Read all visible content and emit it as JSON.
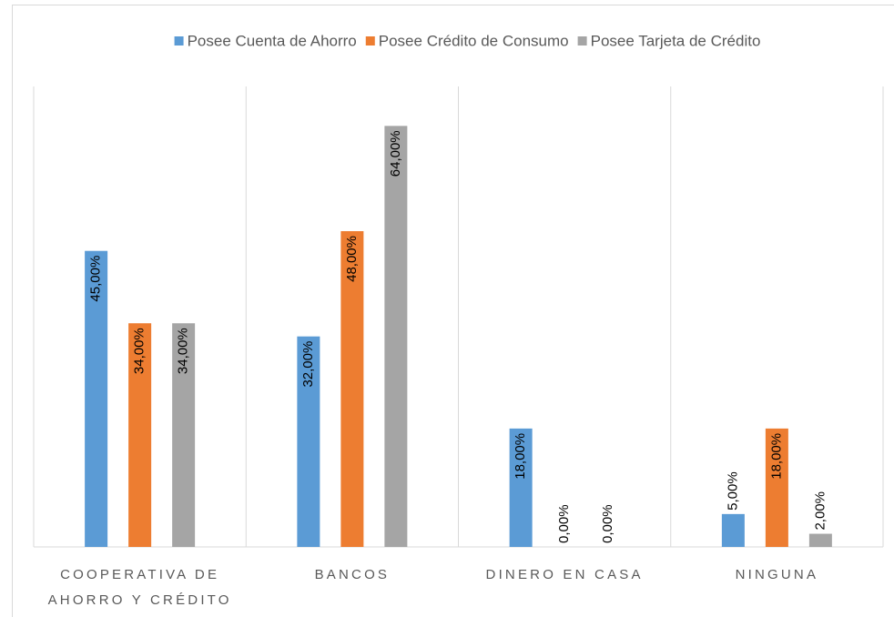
{
  "chart_data": {
    "type": "bar",
    "categories": [
      "COOPERATIVA DE AHORRO Y CRÉDITO",
      "BANCOS",
      "DINERO EN CASA",
      "NINGUNA"
    ],
    "series": [
      {
        "name": "Posee Cuenta de Ahorro",
        "color": "#5b9bd5",
        "values": [
          45,
          32,
          18,
          5
        ],
        "value_labels": [
          "45,00%",
          "32,00%",
          "18,00%",
          "5,00%"
        ]
      },
      {
        "name": "Posee Crédito de Consumo",
        "color": "#ed7d31",
        "values": [
          34,
          48,
          0,
          18
        ],
        "value_labels": [
          "34,00%",
          "48,00%",
          "0,00%",
          "18,00%"
        ]
      },
      {
        "name": "Posee Tarjeta de Crédito",
        "color": "#a5a5a5",
        "values": [
          34,
          64,
          0,
          2
        ],
        "value_labels": [
          "34,00%",
          "64,00%",
          "0,00%",
          "2,00%"
        ]
      }
    ],
    "ylim": [
      0,
      70
    ],
    "legend": "top"
  }
}
